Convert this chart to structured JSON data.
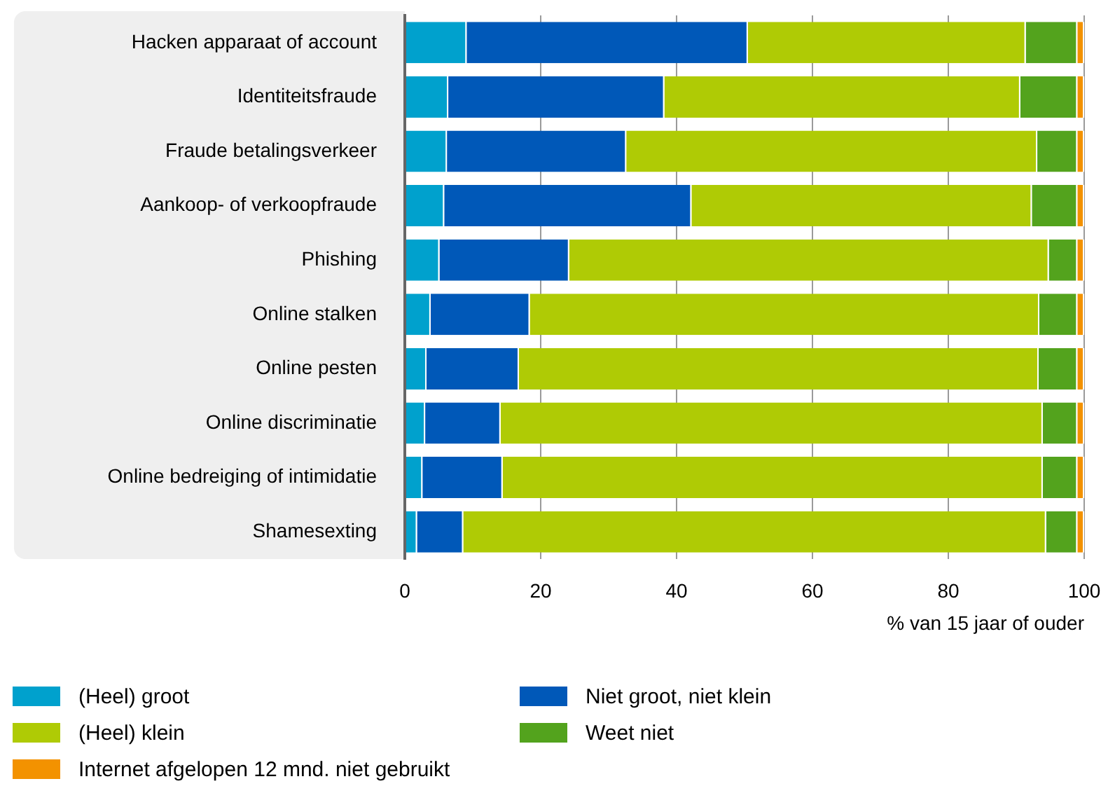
{
  "chart_data": {
    "type": "bar",
    "orientation": "horizontal",
    "stacked": true,
    "categories": [
      "Hacken apparaat of account",
      "Identiteitsfraude",
      "Fraude betalingsverkeer",
      "Aankoop- of verkoopfraude",
      "Phishing",
      "Online stalken",
      "Online pesten",
      "Online discriminatie",
      "Online bedreiging of intimidatie",
      "Shamesexting"
    ],
    "series": [
      {
        "name": "(Heel) groot",
        "color": "#00a1cd",
        "values": [
          9.1,
          6.4,
          6.2,
          5.8,
          5.1,
          3.8,
          3.2,
          3.0,
          2.6,
          1.8
        ]
      },
      {
        "name": "Niet groot, niet klein",
        "color": "#0058b8",
        "values": [
          41.4,
          31.8,
          26.4,
          36.4,
          19.1,
          14.6,
          13.6,
          11.1,
          11.8,
          6.8
        ]
      },
      {
        "name": "(Heel) klein",
        "color": "#afcb05",
        "values": [
          40.9,
          52.4,
          60.5,
          50.1,
          70.6,
          75.0,
          76.5,
          79.8,
          79.5,
          85.8
        ]
      },
      {
        "name": "Weet niet",
        "color": "#53a31d",
        "values": [
          7.6,
          8.4,
          5.9,
          6.7,
          4.2,
          5.6,
          5.7,
          5.1,
          5.1,
          4.6
        ]
      },
      {
        "name": "Internet afgelopen 12 mnd. niet gebruikt",
        "color": "#f39200",
        "values": [
          1.0,
          1.0,
          1.0,
          1.0,
          1.0,
          1.0,
          1.0,
          1.0,
          1.0,
          1.0
        ]
      }
    ],
    "xlim": [
      0,
      100
    ],
    "xticks": [
      0,
      20,
      40,
      60,
      80,
      100
    ],
    "xlabel": "% van 15 jaar of ouder",
    "grid": "x",
    "legend": "bottom"
  }
}
